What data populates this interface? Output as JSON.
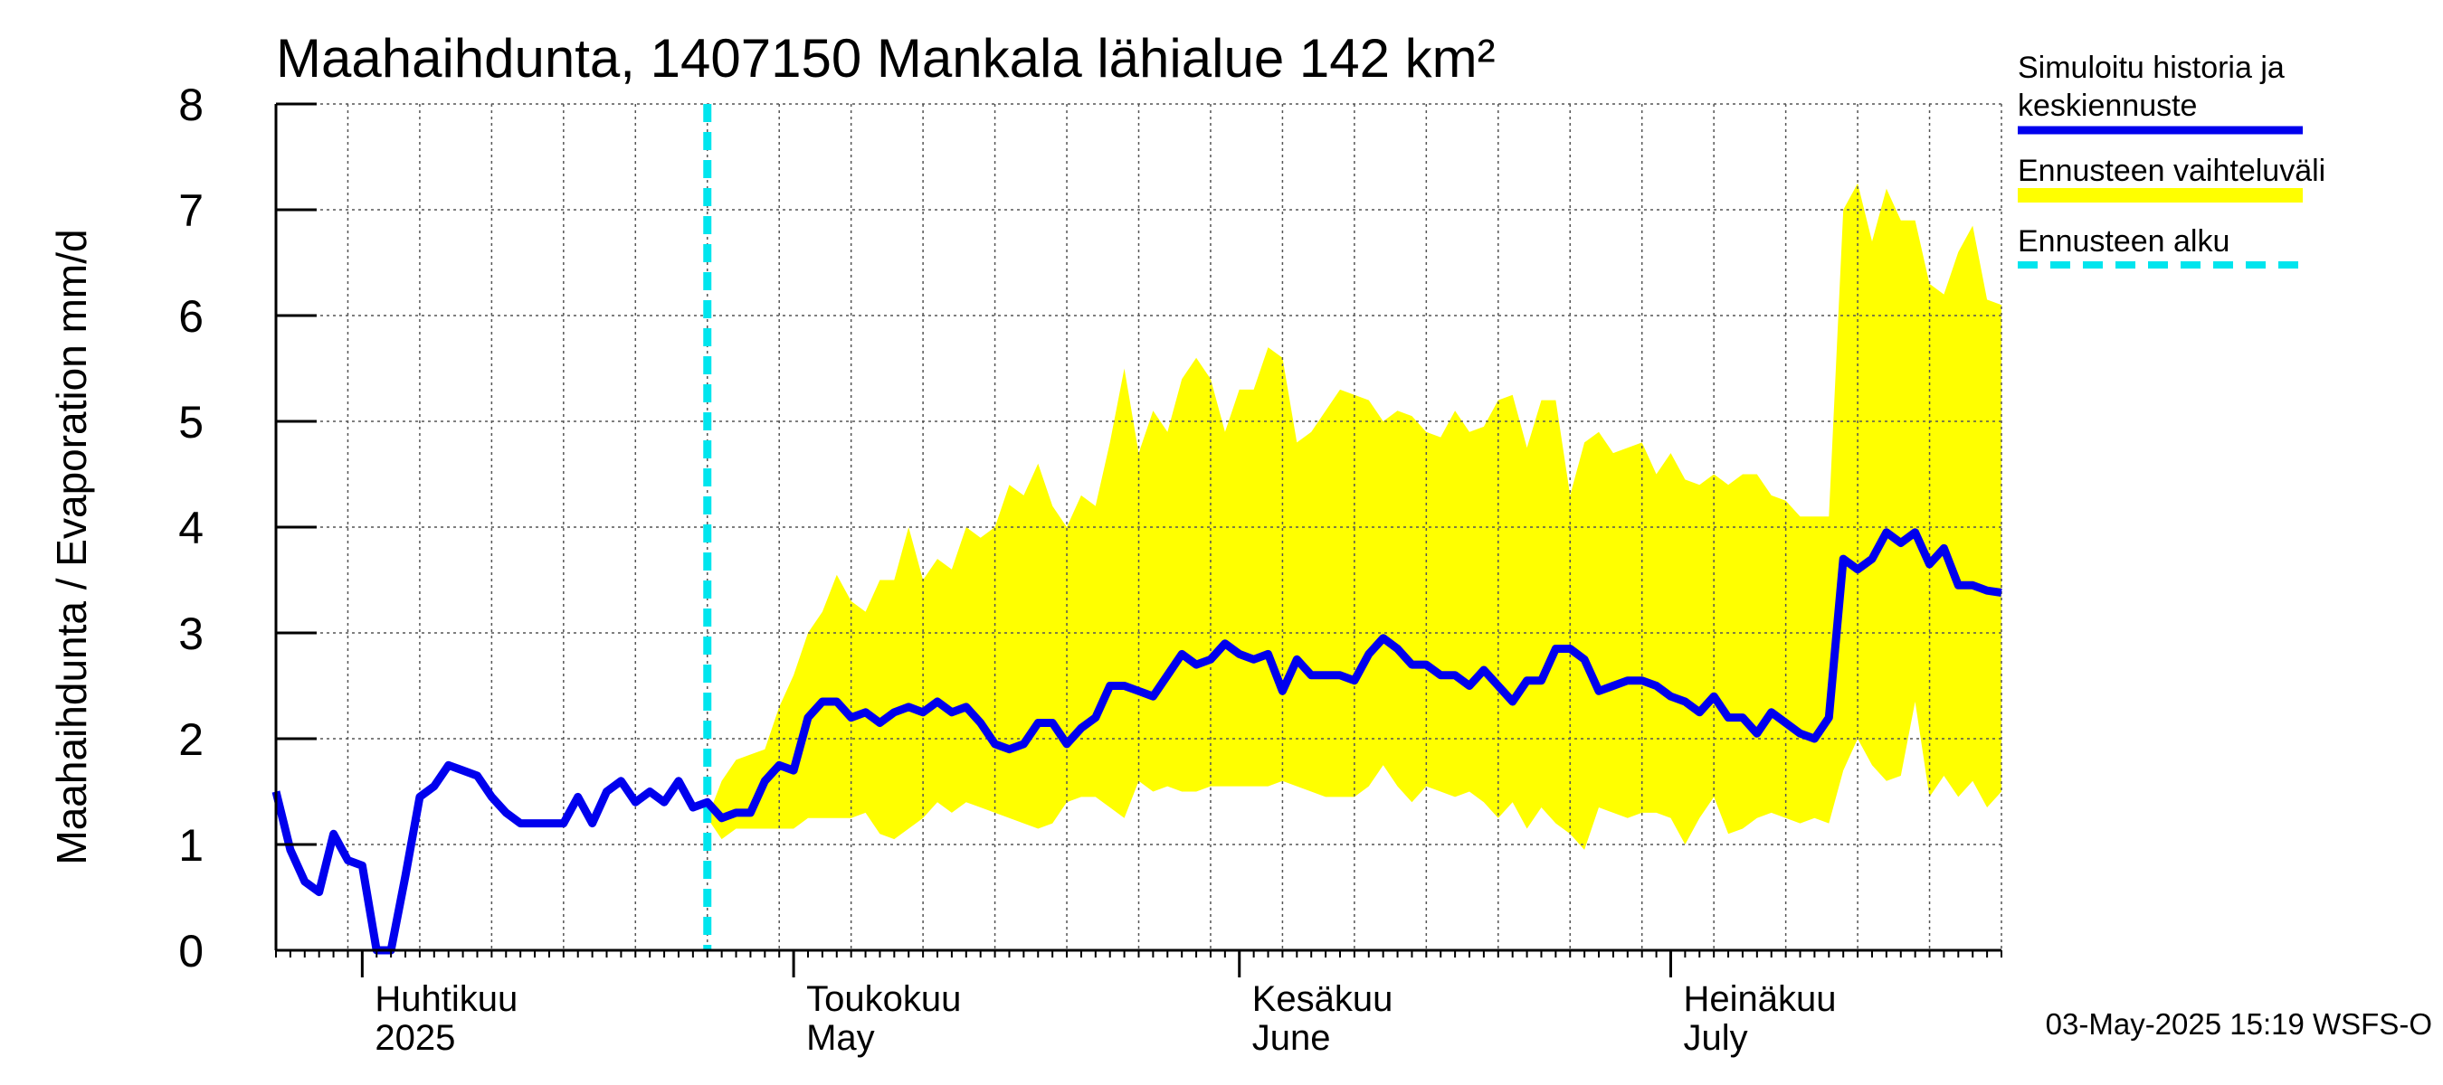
{
  "chart_data": {
    "type": "line",
    "title": "Maahaihdunta, 1407150 Mankala lähialue 142 km²",
    "ylabel": "Maahaihdunta / Evaporation   mm/d",
    "ylim": [
      0,
      8
    ],
    "yticks": [
      "0",
      "1",
      "2",
      "3",
      "4",
      "5",
      "6",
      "7",
      "8"
    ],
    "x_range_day_of_year": [
      85,
      205
    ],
    "x_label_unit": "day of year 2025",
    "grid": true,
    "month_labels": [
      {
        "fi": "Huhtikuu",
        "en": "2025",
        "day": 91
      },
      {
        "fi": "Toukokuu",
        "en": "May",
        "day": 121
      },
      {
        "fi": "Kesäkuu",
        "en": "June",
        "day": 152
      },
      {
        "fi": "Heinäkuu",
        "en": "July",
        "day": 182
      }
    ],
    "forecast_start_day": 115,
    "legend": [
      {
        "label_line1": "Simuloitu historia ja",
        "label_line2": "keskiennuste",
        "color": "#0000ee",
        "style": "solid"
      },
      {
        "label_line1": "Ennusteen vaihteluväli",
        "label_line2": "",
        "color": "#ffff00",
        "style": "band"
      },
      {
        "label_line1": "Ennusteen alku",
        "label_line2": "",
        "color": "#00e5ee",
        "style": "dashed"
      }
    ],
    "legend_position": "right",
    "series": [
      {
        "name": "Simuloitu historia ja keskiennuste",
        "color": "#0000ee",
        "points": [
          [
            85,
            1.5
          ],
          [
            86,
            0.95
          ],
          [
            87,
            0.65
          ],
          [
            88,
            0.55
          ],
          [
            89,
            1.1
          ],
          [
            90,
            0.85
          ],
          [
            91,
            0.8
          ],
          [
            92,
            0.0
          ],
          [
            93,
            0.0
          ],
          [
            94,
            0.7
          ],
          [
            95,
            1.45
          ],
          [
            96,
            1.55
          ],
          [
            97,
            1.75
          ],
          [
            98,
            1.7
          ],
          [
            99,
            1.65
          ],
          [
            100,
            1.45
          ],
          [
            101,
            1.3
          ],
          [
            102,
            1.2
          ],
          [
            103,
            1.2
          ],
          [
            104,
            1.2
          ],
          [
            105,
            1.2
          ],
          [
            106,
            1.45
          ],
          [
            107,
            1.2
          ],
          [
            108,
            1.5
          ],
          [
            109,
            1.6
          ],
          [
            110,
            1.4
          ],
          [
            111,
            1.5
          ],
          [
            112,
            1.4
          ],
          [
            113,
            1.6
          ],
          [
            114,
            1.35
          ],
          [
            115,
            1.4
          ],
          [
            116,
            1.25
          ],
          [
            117,
            1.3
          ],
          [
            118,
            1.3
          ],
          [
            119,
            1.6
          ],
          [
            120,
            1.75
          ],
          [
            121,
            1.7
          ],
          [
            122,
            2.2
          ],
          [
            123,
            2.35
          ],
          [
            124,
            2.35
          ],
          [
            125,
            2.2
          ],
          [
            126,
            2.25
          ],
          [
            127,
            2.15
          ],
          [
            128,
            2.25
          ],
          [
            129,
            2.3
          ],
          [
            130,
            2.25
          ],
          [
            131,
            2.35
          ],
          [
            132,
            2.25
          ],
          [
            133,
            2.3
          ],
          [
            134,
            2.15
          ],
          [
            135,
            1.95
          ],
          [
            136,
            1.9
          ],
          [
            137,
            1.95
          ],
          [
            138,
            2.15
          ],
          [
            139,
            2.15
          ],
          [
            140,
            1.95
          ],
          [
            141,
            2.1
          ],
          [
            142,
            2.2
          ],
          [
            143,
            2.5
          ],
          [
            144,
            2.5
          ],
          [
            145,
            2.45
          ],
          [
            146,
            2.4
          ],
          [
            147,
            2.6
          ],
          [
            148,
            2.8
          ],
          [
            149,
            2.7
          ],
          [
            150,
            2.75
          ],
          [
            151,
            2.9
          ],
          [
            152,
            2.8
          ],
          [
            153,
            2.75
          ],
          [
            154,
            2.8
          ],
          [
            155,
            2.45
          ],
          [
            156,
            2.75
          ],
          [
            157,
            2.6
          ],
          [
            158,
            2.6
          ],
          [
            159,
            2.6
          ],
          [
            160,
            2.55
          ],
          [
            161,
            2.8
          ],
          [
            162,
            2.95
          ],
          [
            163,
            2.85
          ],
          [
            164,
            2.7
          ],
          [
            165,
            2.7
          ],
          [
            166,
            2.6
          ],
          [
            167,
            2.6
          ],
          [
            168,
            2.5
          ],
          [
            169,
            2.65
          ],
          [
            170,
            2.5
          ],
          [
            171,
            2.35
          ],
          [
            172,
            2.55
          ],
          [
            173,
            2.55
          ],
          [
            174,
            2.85
          ],
          [
            175,
            2.85
          ],
          [
            176,
            2.75
          ],
          [
            177,
            2.45
          ],
          [
            178,
            2.5
          ],
          [
            179,
            2.55
          ],
          [
            180,
            2.55
          ],
          [
            181,
            2.5
          ],
          [
            182,
            2.4
          ],
          [
            183,
            2.35
          ],
          [
            184,
            2.25
          ],
          [
            185,
            2.4
          ],
          [
            186,
            2.2
          ],
          [
            187,
            2.2
          ],
          [
            188,
            2.05
          ],
          [
            189,
            2.25
          ],
          [
            190,
            2.15
          ],
          [
            191,
            2.05
          ],
          [
            192,
            2.0
          ],
          [
            193,
            2.2
          ],
          [
            194,
            3.7
          ],
          [
            195,
            3.6
          ],
          [
            196,
            3.7
          ],
          [
            197,
            3.95
          ],
          [
            198,
            3.85
          ],
          [
            199,
            3.95
          ],
          [
            200,
            3.65
          ],
          [
            201,
            3.8
          ],
          [
            202,
            3.45
          ],
          [
            203,
            3.45
          ],
          [
            204,
            3.4
          ],
          [
            205,
            3.38
          ]
        ]
      }
    ],
    "band": {
      "name": "Ennusteen vaihteluväli",
      "color": "#ffff00",
      "upper": [
        [
          115,
          1.25
        ],
        [
          116,
          1.6
        ],
        [
          117,
          1.8
        ],
        [
          118,
          1.85
        ],
        [
          119,
          1.9
        ],
        [
          120,
          2.3
        ],
        [
          121,
          2.6
        ],
        [
          122,
          3.0
        ],
        [
          123,
          3.2
        ],
        [
          124,
          3.55
        ],
        [
          125,
          3.3
        ],
        [
          126,
          3.2
        ],
        [
          127,
          3.5
        ],
        [
          128,
          3.5
        ],
        [
          129,
          4.0
        ],
        [
          130,
          3.5
        ],
        [
          131,
          3.7
        ],
        [
          132,
          3.6
        ],
        [
          133,
          4.0
        ],
        [
          134,
          3.9
        ],
        [
          135,
          4.0
        ],
        [
          136,
          4.4
        ],
        [
          137,
          4.3
        ],
        [
          138,
          4.6
        ],
        [
          139,
          4.2
        ],
        [
          140,
          4.0
        ],
        [
          141,
          4.3
        ],
        [
          142,
          4.2
        ],
        [
          143,
          4.8
        ],
        [
          144,
          5.5
        ],
        [
          145,
          4.7
        ],
        [
          146,
          5.1
        ],
        [
          147,
          4.9
        ],
        [
          148,
          5.4
        ],
        [
          149,
          5.6
        ],
        [
          150,
          5.4
        ],
        [
          151,
          4.9
        ],
        [
          152,
          5.3
        ],
        [
          153,
          5.3
        ],
        [
          154,
          5.7
        ],
        [
          155,
          5.6
        ],
        [
          156,
          4.8
        ],
        [
          157,
          4.9
        ],
        [
          158,
          5.1
        ],
        [
          159,
          5.3
        ],
        [
          160,
          5.25
        ],
        [
          161,
          5.2
        ],
        [
          162,
          5.0
        ],
        [
          163,
          5.1
        ],
        [
          164,
          5.05
        ],
        [
          165,
          4.9
        ],
        [
          166,
          4.85
        ],
        [
          167,
          5.1
        ],
        [
          168,
          4.9
        ],
        [
          169,
          4.95
        ],
        [
          170,
          5.2
        ],
        [
          171,
          5.25
        ],
        [
          172,
          4.75
        ],
        [
          173,
          5.2
        ],
        [
          174,
          5.2
        ],
        [
          175,
          4.3
        ],
        [
          176,
          4.8
        ],
        [
          177,
          4.9
        ],
        [
          178,
          4.7
        ],
        [
          179,
          4.75
        ],
        [
          180,
          4.8
        ],
        [
          181,
          4.5
        ],
        [
          182,
          4.7
        ],
        [
          183,
          4.45
        ],
        [
          184,
          4.4
        ],
        [
          185,
          4.5
        ],
        [
          186,
          4.4
        ],
        [
          187,
          4.5
        ],
        [
          188,
          4.5
        ],
        [
          189,
          4.3
        ],
        [
          190,
          4.25
        ],
        [
          191,
          4.1
        ],
        [
          192,
          4.1
        ],
        [
          193,
          4.1
        ],
        [
          194,
          7.0
        ],
        [
          195,
          7.25
        ],
        [
          196,
          6.7
        ],
        [
          197,
          7.2
        ],
        [
          198,
          6.9
        ],
        [
          199,
          6.9
        ],
        [
          200,
          6.3
        ],
        [
          201,
          6.2
        ],
        [
          202,
          6.6
        ],
        [
          203,
          6.85
        ],
        [
          204,
          6.15
        ],
        [
          205,
          6.1
        ]
      ],
      "lower": [
        [
          115,
          1.25
        ],
        [
          116,
          1.05
        ],
        [
          117,
          1.15
        ],
        [
          118,
          1.15
        ],
        [
          119,
          1.15
        ],
        [
          120,
          1.15
        ],
        [
          121,
          1.15
        ],
        [
          122,
          1.25
        ],
        [
          123,
          1.25
        ],
        [
          124,
          1.25
        ],
        [
          125,
          1.25
        ],
        [
          126,
          1.3
        ],
        [
          127,
          1.1
        ],
        [
          128,
          1.05
        ],
        [
          129,
          1.15
        ],
        [
          130,
          1.25
        ],
        [
          131,
          1.4
        ],
        [
          132,
          1.3
        ],
        [
          133,
          1.4
        ],
        [
          134,
          1.35
        ],
        [
          135,
          1.3
        ],
        [
          136,
          1.25
        ],
        [
          137,
          1.2
        ],
        [
          138,
          1.15
        ],
        [
          139,
          1.2
        ],
        [
          140,
          1.4
        ],
        [
          141,
          1.45
        ],
        [
          142,
          1.45
        ],
        [
          143,
          1.35
        ],
        [
          144,
          1.25
        ],
        [
          145,
          1.6
        ],
        [
          146,
          1.5
        ],
        [
          147,
          1.55
        ],
        [
          148,
          1.5
        ],
        [
          149,
          1.5
        ],
        [
          150,
          1.55
        ],
        [
          151,
          1.55
        ],
        [
          152,
          1.55
        ],
        [
          153,
          1.55
        ],
        [
          154,
          1.55
        ],
        [
          155,
          1.6
        ],
        [
          156,
          1.55
        ],
        [
          157,
          1.5
        ],
        [
          158,
          1.45
        ],
        [
          159,
          1.45
        ],
        [
          160,
          1.45
        ],
        [
          161,
          1.55
        ],
        [
          162,
          1.75
        ],
        [
          163,
          1.55
        ],
        [
          164,
          1.4
        ],
        [
          165,
          1.55
        ],
        [
          166,
          1.5
        ],
        [
          167,
          1.45
        ],
        [
          168,
          1.5
        ],
        [
          169,
          1.4
        ],
        [
          170,
          1.25
        ],
        [
          171,
          1.4
        ],
        [
          172,
          1.15
        ],
        [
          173,
          1.35
        ],
        [
          174,
          1.2
        ],
        [
          175,
          1.1
        ],
        [
          176,
          0.95
        ],
        [
          177,
          1.35
        ],
        [
          178,
          1.3
        ],
        [
          179,
          1.25
        ],
        [
          180,
          1.3
        ],
        [
          181,
          1.3
        ],
        [
          182,
          1.25
        ],
        [
          183,
          1.0
        ],
        [
          184,
          1.25
        ],
        [
          185,
          1.45
        ],
        [
          186,
          1.1
        ],
        [
          187,
          1.15
        ],
        [
          188,
          1.25
        ],
        [
          189,
          1.3
        ],
        [
          190,
          1.25
        ],
        [
          191,
          1.2
        ],
        [
          192,
          1.25
        ],
        [
          193,
          1.2
        ],
        [
          194,
          1.7
        ],
        [
          195,
          2.0
        ],
        [
          196,
          1.75
        ],
        [
          197,
          1.6
        ],
        [
          198,
          1.65
        ],
        [
          199,
          2.35
        ],
        [
          200,
          1.45
        ],
        [
          201,
          1.65
        ],
        [
          202,
          1.45
        ],
        [
          203,
          1.6
        ],
        [
          204,
          1.35
        ],
        [
          205,
          1.5
        ]
      ]
    },
    "footer": "03-May-2025 15:19 WSFS-O"
  }
}
